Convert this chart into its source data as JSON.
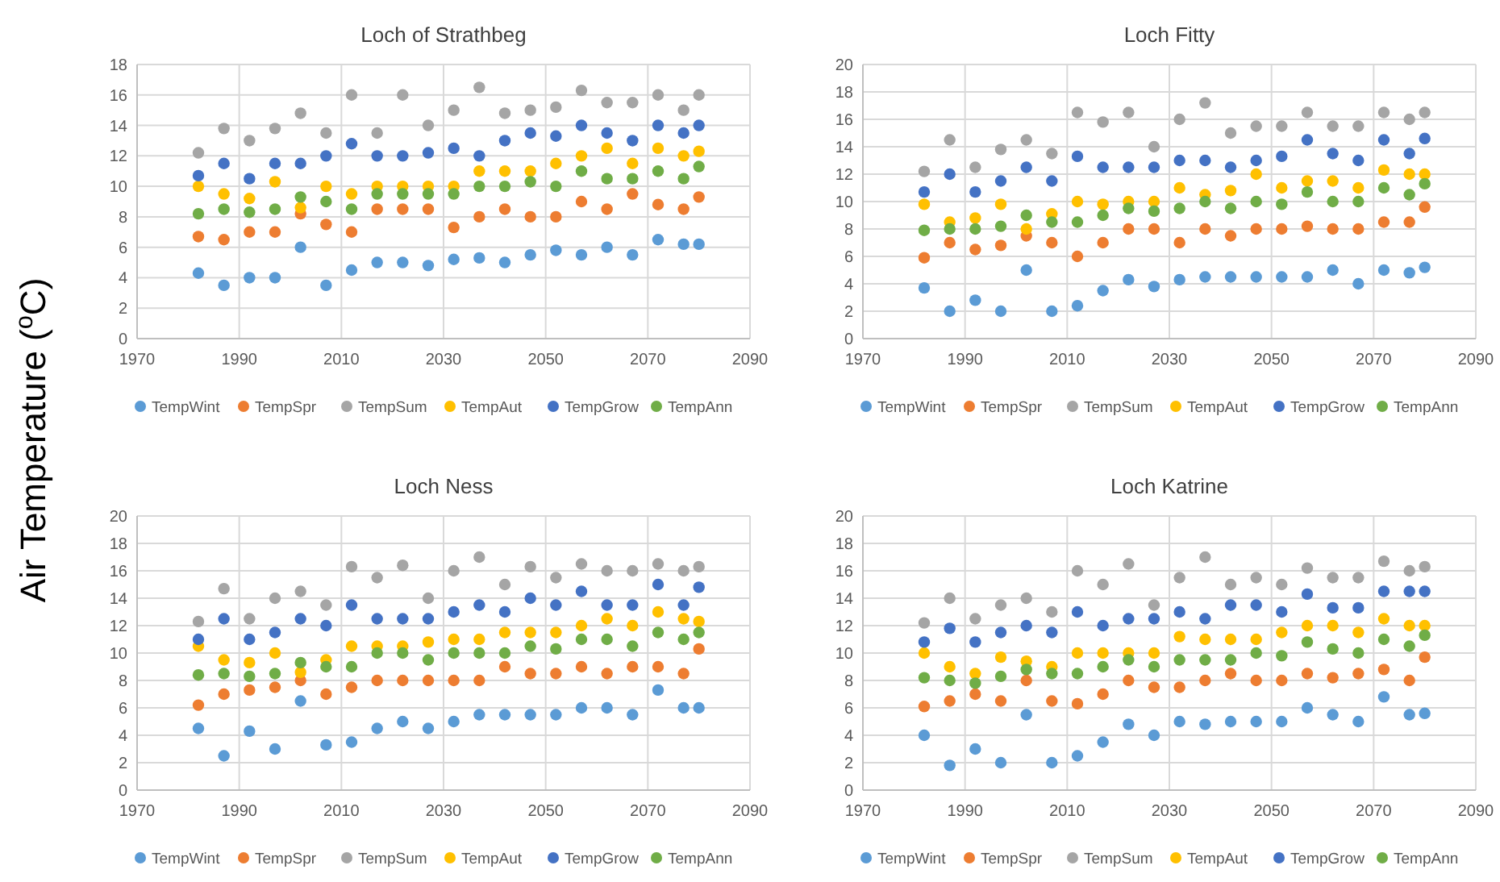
{
  "chart_data": [
    {
      "type": "scatter",
      "title": "Loch of Strathbeg",
      "ylabel": "Air Temperature ($^{o}$C)",
      "xlim": [
        1970,
        2090
      ],
      "xticks": [
        1970,
        1990,
        2010,
        2030,
        2050,
        2070,
        2090
      ],
      "ylim": [
        0,
        18
      ],
      "yticks": [
        0,
        2,
        4,
        6,
        8,
        10,
        12,
        14,
        16,
        18
      ],
      "grid": true,
      "legend": "bottom",
      "marker": "circle",
      "x": [
        1982,
        1987,
        1992,
        1997,
        2002,
        2007,
        2012,
        2017,
        2022,
        2027,
        2032,
        2037,
        2042,
        2047,
        2052,
        2057,
        2062,
        2067,
        2072,
        2077,
        2080
      ],
      "series": [
        {
          "name": "TempWint",
          "color": "#5b9bd5",
          "values": [
            4.3,
            3.5,
            4.0,
            4.0,
            6.0,
            3.5,
            4.5,
            5.0,
            5.0,
            4.8,
            5.2,
            5.3,
            5.0,
            5.5,
            5.8,
            5.5,
            6.0,
            5.5,
            6.5,
            6.2,
            6.2
          ]
        },
        {
          "name": "TempSpr",
          "color": "#ed7d31",
          "values": [
            6.7,
            6.5,
            7.0,
            7.0,
            8.2,
            7.5,
            7.0,
            8.5,
            8.5,
            8.5,
            7.3,
            8.0,
            8.5,
            8.0,
            8.0,
            9.0,
            8.5,
            9.5,
            8.8,
            8.5,
            9.3
          ]
        },
        {
          "name": "TempSum",
          "color": "#a5a5a5",
          "values": [
            12.2,
            13.8,
            13.0,
            13.8,
            14.8,
            13.5,
            16.0,
            13.5,
            16.0,
            14.0,
            15.0,
            16.5,
            14.8,
            15.0,
            15.2,
            16.3,
            15.5,
            15.5,
            16.0,
            15.0,
            16.0
          ]
        },
        {
          "name": "TempAut",
          "color": "#ffc000",
          "values": [
            10.0,
            9.5,
            9.2,
            10.3,
            8.6,
            10.0,
            9.5,
            10.0,
            10.0,
            10.0,
            10.0,
            11.0,
            11.0,
            11.0,
            11.5,
            12.0,
            12.5,
            11.5,
            12.5,
            12.0,
            12.3
          ]
        },
        {
          "name": "TempGrow",
          "color": "#4472c4",
          "values": [
            10.7,
            11.5,
            10.5,
            11.5,
            11.5,
            12.0,
            12.8,
            12.0,
            12.0,
            12.2,
            12.5,
            12.0,
            13.0,
            13.5,
            13.3,
            14.0,
            13.5,
            13.0,
            14.0,
            13.5,
            14.0
          ]
        },
        {
          "name": "TempAnn",
          "color": "#70ad47",
          "values": [
            8.2,
            8.5,
            8.3,
            8.5,
            9.3,
            9.0,
            8.5,
            9.5,
            9.5,
            9.5,
            9.5,
            10.0,
            10.0,
            10.3,
            10.0,
            11.0,
            10.5,
            10.5,
            11.0,
            10.5,
            11.3
          ]
        }
      ]
    },
    {
      "type": "scatter",
      "title": "Loch Fitty",
      "xlim": [
        1970,
        2090
      ],
      "xticks": [
        1970,
        1990,
        2010,
        2030,
        2050,
        2070,
        2090
      ],
      "ylim": [
        0,
        20
      ],
      "yticks": [
        0,
        2,
        4,
        6,
        8,
        10,
        12,
        14,
        16,
        18,
        20
      ],
      "grid": true,
      "legend": "bottom",
      "marker": "circle",
      "x": [
        1982,
        1987,
        1992,
        1997,
        2002,
        2007,
        2012,
        2017,
        2022,
        2027,
        2032,
        2037,
        2042,
        2047,
        2052,
        2057,
        2062,
        2067,
        2072,
        2077,
        2080
      ],
      "series": [
        {
          "name": "TempWint",
          "color": "#5b9bd5",
          "values": [
            3.7,
            2.0,
            2.8,
            2.0,
            5.0,
            2.0,
            2.4,
            3.5,
            4.3,
            3.8,
            4.3,
            4.5,
            4.5,
            4.5,
            4.5,
            4.5,
            5.0,
            4.0,
            5.0,
            4.8,
            5.2
          ]
        },
        {
          "name": "TempSpr",
          "color": "#ed7d31",
          "values": [
            5.9,
            7.0,
            6.5,
            6.8,
            7.5,
            7.0,
            6.0,
            7.0,
            8.0,
            8.0,
            7.0,
            8.0,
            7.5,
            8.0,
            8.0,
            8.2,
            8.0,
            8.0,
            8.5,
            8.5,
            9.6
          ]
        },
        {
          "name": "TempSum",
          "color": "#a5a5a5",
          "values": [
            12.2,
            14.5,
            12.5,
            13.8,
            14.5,
            13.5,
            16.5,
            15.8,
            16.5,
            14.0,
            16.0,
            17.2,
            15.0,
            15.5,
            15.5,
            16.5,
            15.5,
            15.5,
            16.5,
            16.0,
            16.5
          ]
        },
        {
          "name": "TempAut",
          "color": "#ffc000",
          "values": [
            9.8,
            8.5,
            8.8,
            9.8,
            8.0,
            9.1,
            10.0,
            9.8,
            10.0,
            10.0,
            11.0,
            10.5,
            10.8,
            12.0,
            11.0,
            11.5,
            11.5,
            11.0,
            12.3,
            12.0,
            12.0
          ]
        },
        {
          "name": "TempGrow",
          "color": "#4472c4",
          "values": [
            10.7,
            12.0,
            10.7,
            11.5,
            12.5,
            11.5,
            13.3,
            12.5,
            12.5,
            12.5,
            13.0,
            13.0,
            12.5,
            13.0,
            13.3,
            14.5,
            13.5,
            13.0,
            14.5,
            13.5,
            14.6
          ]
        },
        {
          "name": "TempAnn",
          "color": "#70ad47",
          "values": [
            7.9,
            8.0,
            8.0,
            8.2,
            9.0,
            8.5,
            8.5,
            9.0,
            9.5,
            9.3,
            9.5,
            10.0,
            9.5,
            10.0,
            9.8,
            10.7,
            10.0,
            10.0,
            11.0,
            10.5,
            11.3
          ]
        }
      ]
    },
    {
      "type": "scatter",
      "title": "Loch Ness",
      "xlim": [
        1970,
        2090
      ],
      "xticks": [
        1970,
        1990,
        2010,
        2030,
        2050,
        2070,
        2090
      ],
      "ylim": [
        0,
        20
      ],
      "yticks": [
        0,
        2,
        4,
        6,
        8,
        10,
        12,
        14,
        16,
        18,
        20
      ],
      "grid": true,
      "legend": "bottom",
      "marker": "circle",
      "x": [
        1982,
        1987,
        1992,
        1997,
        2002,
        2007,
        2012,
        2017,
        2022,
        2027,
        2032,
        2037,
        2042,
        2047,
        2052,
        2057,
        2062,
        2067,
        2072,
        2077,
        2080
      ],
      "series": [
        {
          "name": "TempWint",
          "color": "#5b9bd5",
          "values": [
            4.5,
            2.5,
            4.3,
            3.0,
            6.5,
            3.3,
            3.5,
            4.5,
            5.0,
            4.5,
            5.0,
            5.5,
            5.5,
            5.5,
            5.5,
            6.0,
            6.0,
            5.5,
            7.3,
            6.0,
            6.0
          ]
        },
        {
          "name": "TempSpr",
          "color": "#ed7d31",
          "values": [
            6.2,
            7.0,
            7.3,
            7.5,
            8.0,
            7.0,
            7.5,
            8.0,
            8.0,
            8.0,
            8.0,
            8.0,
            9.0,
            8.5,
            8.5,
            9.0,
            8.5,
            9.0,
            9.0,
            8.5,
            10.3
          ]
        },
        {
          "name": "TempSum",
          "color": "#a5a5a5",
          "values": [
            12.3,
            14.7,
            12.5,
            14.0,
            14.5,
            13.5,
            16.3,
            15.5,
            16.4,
            14.0,
            16.0,
            17.0,
            15.0,
            16.3,
            15.5,
            16.5,
            16.0,
            16.0,
            16.5,
            16.0,
            16.3
          ]
        },
        {
          "name": "TempAut",
          "color": "#ffc000",
          "values": [
            10.5,
            9.5,
            9.3,
            10.0,
            8.6,
            9.5,
            10.5,
            10.5,
            10.5,
            10.8,
            11.0,
            11.0,
            11.5,
            11.5,
            11.5,
            12.0,
            12.5,
            12.0,
            13.0,
            12.5,
            12.3
          ]
        },
        {
          "name": "TempGrow",
          "color": "#4472c4",
          "values": [
            11.0,
            12.5,
            11.0,
            11.5,
            12.5,
            12.0,
            13.5,
            12.5,
            12.5,
            12.5,
            13.0,
            13.5,
            13.0,
            14.0,
            13.5,
            14.5,
            13.5,
            13.5,
            15.0,
            13.5,
            14.8
          ]
        },
        {
          "name": "TempAnn",
          "color": "#70ad47",
          "values": [
            8.4,
            8.5,
            8.3,
            8.5,
            9.3,
            9.0,
            9.0,
            10.0,
            10.0,
            9.5,
            10.0,
            10.0,
            10.0,
            10.5,
            10.3,
            11.0,
            11.0,
            10.5,
            11.5,
            11.0,
            11.5
          ]
        }
      ]
    },
    {
      "type": "scatter",
      "title": "Loch Katrine",
      "xlim": [
        1970,
        2090
      ],
      "xticks": [
        1970,
        1990,
        2010,
        2030,
        2050,
        2070,
        2090
      ],
      "ylim": [
        0,
        20
      ],
      "yticks": [
        0,
        2,
        4,
        6,
        8,
        10,
        12,
        14,
        16,
        18,
        20
      ],
      "grid": true,
      "legend": "bottom",
      "marker": "circle",
      "x": [
        1982,
        1987,
        1992,
        1997,
        2002,
        2007,
        2012,
        2017,
        2022,
        2027,
        2032,
        2037,
        2042,
        2047,
        2052,
        2057,
        2062,
        2067,
        2072,
        2077,
        2080
      ],
      "series": [
        {
          "name": "TempWint",
          "color": "#5b9bd5",
          "values": [
            4.0,
            1.8,
            3.0,
            2.0,
            5.5,
            2.0,
            2.5,
            3.5,
            4.8,
            4.0,
            5.0,
            4.8,
            5.0,
            5.0,
            5.0,
            6.0,
            5.5,
            5.0,
            6.8,
            5.5,
            5.6
          ]
        },
        {
          "name": "TempSpr",
          "color": "#ed7d31",
          "values": [
            6.1,
            6.5,
            7.0,
            6.5,
            8.0,
            6.5,
            6.3,
            7.0,
            8.0,
            7.5,
            7.5,
            8.0,
            8.5,
            8.0,
            8.0,
            8.5,
            8.2,
            8.5,
            8.8,
            8.0,
            9.7
          ]
        },
        {
          "name": "TempSum",
          "color": "#a5a5a5",
          "values": [
            12.2,
            14.0,
            12.5,
            13.5,
            14.0,
            13.0,
            16.0,
            15.0,
            16.5,
            13.5,
            15.5,
            17.0,
            15.0,
            15.5,
            15.0,
            16.2,
            15.5,
            15.5,
            16.7,
            16.0,
            16.3
          ]
        },
        {
          "name": "TempAut",
          "color": "#ffc000",
          "values": [
            10.0,
            9.0,
            8.5,
            9.7,
            9.4,
            9.0,
            10.0,
            10.0,
            10.0,
            10.0,
            11.2,
            11.0,
            11.0,
            11.0,
            11.5,
            12.0,
            12.0,
            11.5,
            12.5,
            12.0,
            12.0
          ]
        },
        {
          "name": "TempGrow",
          "color": "#4472c4",
          "values": [
            10.8,
            11.8,
            10.8,
            11.5,
            12.0,
            11.5,
            13.0,
            12.0,
            12.5,
            12.5,
            13.0,
            12.5,
            13.5,
            13.5,
            13.0,
            14.3,
            13.3,
            13.3,
            14.5,
            14.5,
            14.5
          ]
        },
        {
          "name": "TempAnn",
          "color": "#70ad47",
          "values": [
            8.2,
            8.0,
            7.8,
            8.3,
            8.8,
            8.5,
            8.5,
            9.0,
            9.5,
            9.0,
            9.5,
            9.5,
            9.5,
            10.0,
            9.8,
            10.8,
            10.3,
            10.0,
            11.0,
            10.5,
            11.3
          ]
        }
      ]
    }
  ]
}
